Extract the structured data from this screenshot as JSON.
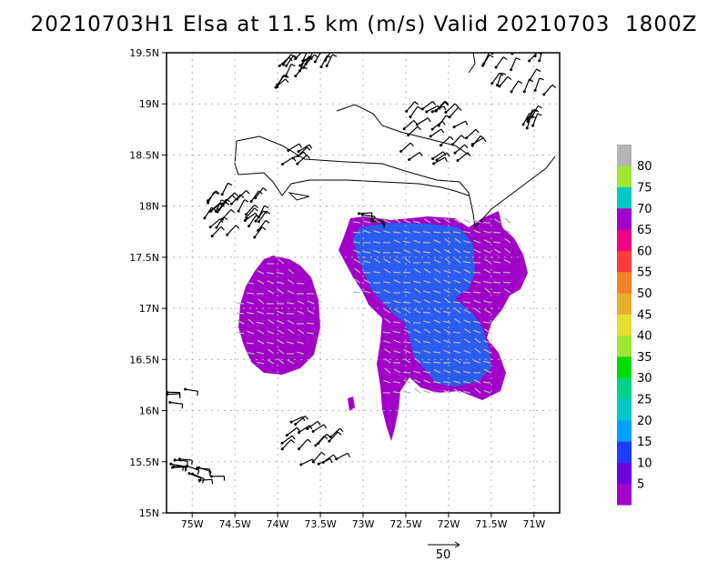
{
  "title": "20210703H1 Elsa at 11.5 km (m/s) Valid 20210703  1800Z",
  "lat_ticks": [
    "15N",
    "15.5N",
    "16N",
    "16.5N",
    "17N",
    "17.5N",
    "18N",
    "18.5N",
    "19N",
    "19.5N"
  ],
  "lon_ticks": [
    "75W",
    "74.5W",
    "74W",
    "73.5W",
    "73W",
    "72.5W",
    "72W",
    "71.5W",
    "71W"
  ],
  "colorbar_labels": [
    "5",
    "10",
    "15",
    "20",
    "25",
    "30",
    "35",
    "40",
    "45",
    "50",
    "55",
    "60",
    "65",
    "70",
    "75",
    "80"
  ],
  "colorbar_colors": [
    "#a000c8",
    "#6e00dc",
    "#1e3cff",
    "#00a0ff",
    "#00c8c8",
    "#00d28c",
    "#00dc00",
    "#a0e632",
    "#e6dc32",
    "#e6af2d",
    "#f08228",
    "#fa3c3c",
    "#f00082",
    "#a000c8",
    "#00c8c8",
    "#a0e632",
    "#b4b4b4"
  ],
  "reference_vector_label": "50",
  "map_extent": {
    "lon_min": -75.3,
    "lon_max": -70.7,
    "lat_min": 15.0,
    "lat_max": 19.5
  },
  "colors": {
    "wind_barb": "#000000",
    "vector": "#b4b4b4",
    "coast": "#000000",
    "grid": "#b4b4b4"
  }
}
